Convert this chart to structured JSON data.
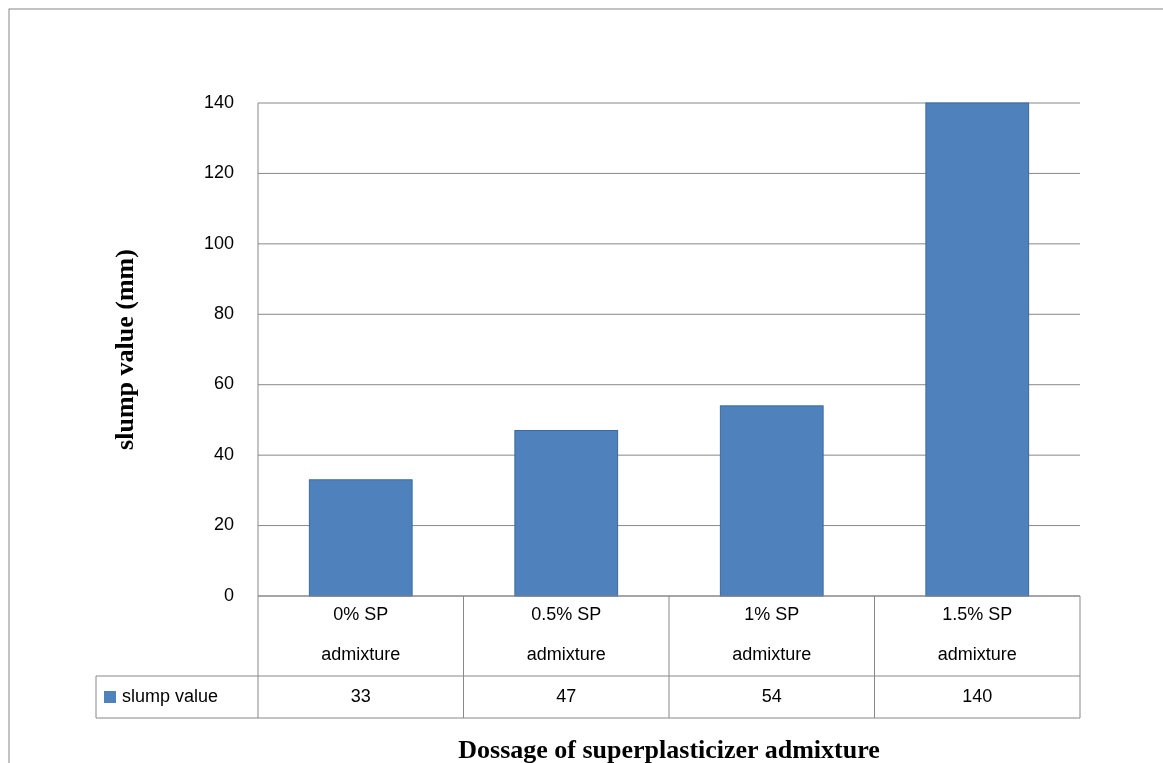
{
  "chart_data": {
    "type": "bar",
    "xlabel": "Dossage of superplasticizer admixture",
    "ylabel": "slump value (mm)",
    "categories": [
      "0% SP admixture",
      "0.5% SP admixture",
      "1% SP admixture",
      "1.5% SP admixture"
    ],
    "series": [
      {
        "name": "slump value",
        "color": "#4f81bd",
        "values": [
          33,
          47,
          54,
          140
        ]
      }
    ],
    "ylim": [
      0,
      140
    ],
    "yticks": [
      0,
      20,
      40,
      60,
      80,
      100,
      120,
      140
    ],
    "grid": "y",
    "legend": "bottom",
    "data_labels": true
  }
}
